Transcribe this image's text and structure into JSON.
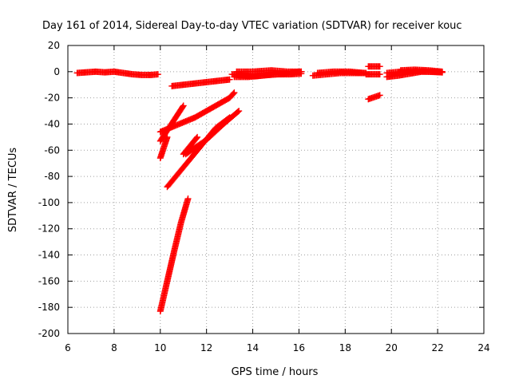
{
  "chart_data": {
    "type": "scatter",
    "title": "Day 161 of 2014, Sidereal Day-to-day VTEC variation (SDTVAR) for receiver kouc",
    "xlabel": "GPS time / hours",
    "ylabel": "SDTVAR / TECUs",
    "xlim": [
      6,
      24
    ],
    "ylim": [
      -200,
      20
    ],
    "xticks": [
      6,
      8,
      10,
      12,
      14,
      16,
      18,
      20,
      22,
      24
    ],
    "yticks": [
      20,
      0,
      -20,
      -40,
      -60,
      -80,
      -100,
      -120,
      -140,
      -160,
      -180,
      -200
    ],
    "grid": true,
    "marker": "plus",
    "series_color": "#ff0000",
    "segments": [
      {
        "x": [
          6.4,
          6.8,
          7.2,
          7.6,
          8.0,
          8.4,
          8.8,
          9.2,
          9.6,
          9.9
        ],
        "y": [
          -1,
          -0.5,
          0,
          -0.5,
          0,
          -1,
          -2,
          -2.5,
          -2.5,
          -2
        ]
      },
      {
        "x": [
          10.5,
          11.0,
          11.5,
          12.0,
          12.5,
          13.0
        ],
        "y": [
          -11,
          -10,
          -9,
          -8,
          -7,
          -6
        ]
      },
      {
        "x": [
          13.1,
          13.6,
          14.1,
          14.6,
          15.1,
          15.6,
          16.1
        ],
        "y": [
          -2,
          -3,
          -3.5,
          -2.5,
          -2,
          -2,
          -1.5
        ]
      },
      {
        "x": [
          13.2,
          13.8,
          14.4,
          15.0,
          15.6,
          16.1
        ],
        "y": [
          -4,
          -4,
          -3,
          -2,
          -1,
          0
        ]
      },
      {
        "x": [
          13.3,
          14.0,
          14.8,
          15.5,
          16.1
        ],
        "y": [
          0,
          0,
          1,
          0,
          0
        ]
      },
      {
        "x": [
          16.6,
          17.2,
          17.8,
          18.4,
          18.9
        ],
        "y": [
          -3,
          -2,
          -1,
          -1,
          -1
        ]
      },
      {
        "x": [
          16.8,
          17.5,
          18.2,
          18.8
        ],
        "y": [
          -1,
          0,
          0,
          -1
        ]
      },
      {
        "x": [
          18.9,
          19.2,
          19.5
        ],
        "y": [
          -2,
          -2,
          -2
        ]
      },
      {
        "x": [
          19.0,
          19.5
        ],
        "y": [
          4,
          4
        ]
      },
      {
        "x": [
          19.8,
          20.3,
          20.8,
          21.3,
          21.8,
          22.2
        ],
        "y": [
          -4,
          -3,
          -1.5,
          0,
          0,
          -0.5
        ]
      },
      {
        "x": [
          19.8,
          20.4,
          21.0,
          21.6,
          22.2
        ],
        "y": [
          -1,
          0,
          0.5,
          0,
          -0.5
        ]
      },
      {
        "x": [
          20.4,
          21.0,
          21.6,
          22.2
        ],
        "y": [
          1,
          1.5,
          1,
          0
        ]
      },
      {
        "x": [
          19.0,
          19.5
        ],
        "y": [
          -21,
          -18
        ]
      },
      {
        "x": [
          10.0,
          11.5,
          13.0,
          13.2
        ],
        "y": [
          -46,
          -35,
          -20,
          -16
        ]
      },
      {
        "x": [
          10.0,
          11.0
        ],
        "y": [
          -53,
          -26
        ]
      },
      {
        "x": [
          10.0,
          10.3
        ],
        "y": [
          -66,
          -50
        ]
      },
      {
        "x": [
          10.3,
          11.0,
          11.7,
          12.4,
          13.0
        ],
        "y": [
          -88,
          -73,
          -58,
          -43,
          -35
        ]
      },
      {
        "x": [
          11.0,
          11.6
        ],
        "y": [
          -63,
          -50
        ]
      },
      {
        "x": [
          11.1,
          12.0,
          12.8,
          13.4
        ],
        "y": [
          -63,
          -52,
          -39,
          -30
        ]
      },
      {
        "x": [
          10.0,
          10.3,
          10.6,
          10.9,
          11.2
        ],
        "y": [
          -183,
          -160,
          -137,
          -115,
          -97
        ]
      }
    ]
  }
}
